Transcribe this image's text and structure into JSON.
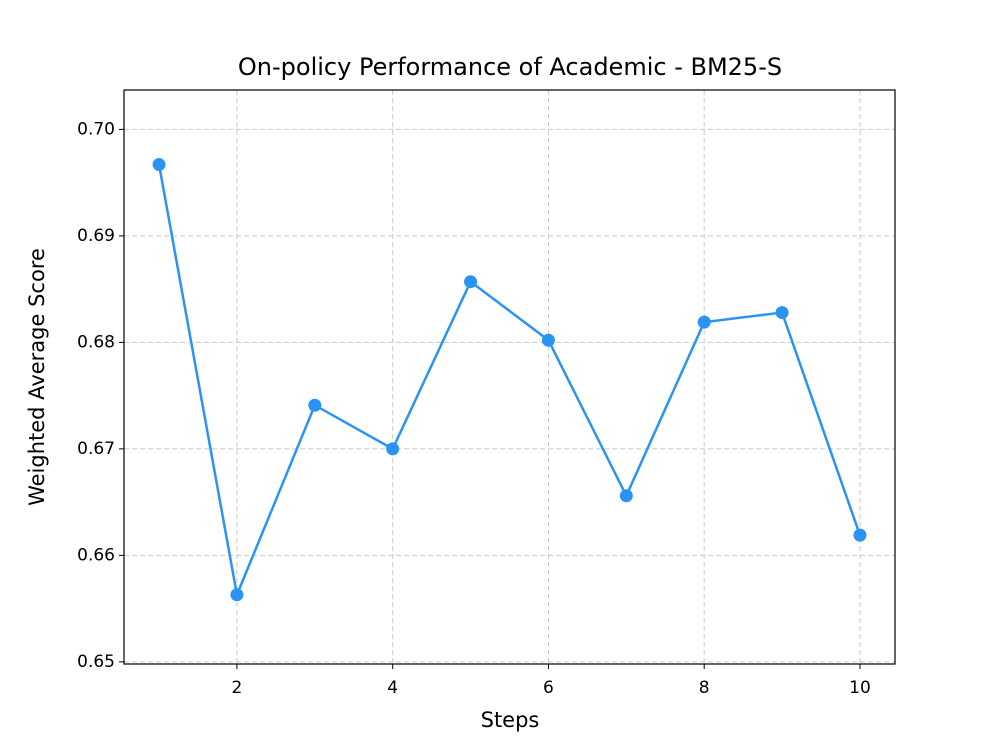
{
  "chart_data": {
    "type": "line",
    "title": "On-policy Performance of Academic - BM25-S",
    "x_label": "Steps",
    "y_label": "Weighted Average Score",
    "x": [
      1,
      2,
      3,
      4,
      5,
      6,
      7,
      8,
      9,
      10
    ],
    "values": [
      0.6967,
      0.6563,
      0.6741,
      0.67,
      0.6857,
      0.6802,
      0.6656,
      0.6819,
      0.6828,
      0.6619
    ],
    "color": "#2a93f4",
    "xlim": [
      0.55,
      10.45
    ],
    "xticks": [
      2,
      4,
      6,
      8,
      10
    ],
    "ylim": [
      0.6498,
      0.7037
    ],
    "yticks": [
      0.65,
      0.66,
      0.67,
      0.68,
      0.69,
      {
        "value": 0.7,
        "label": "0.70"
      }
    ],
    "grid": true
  }
}
